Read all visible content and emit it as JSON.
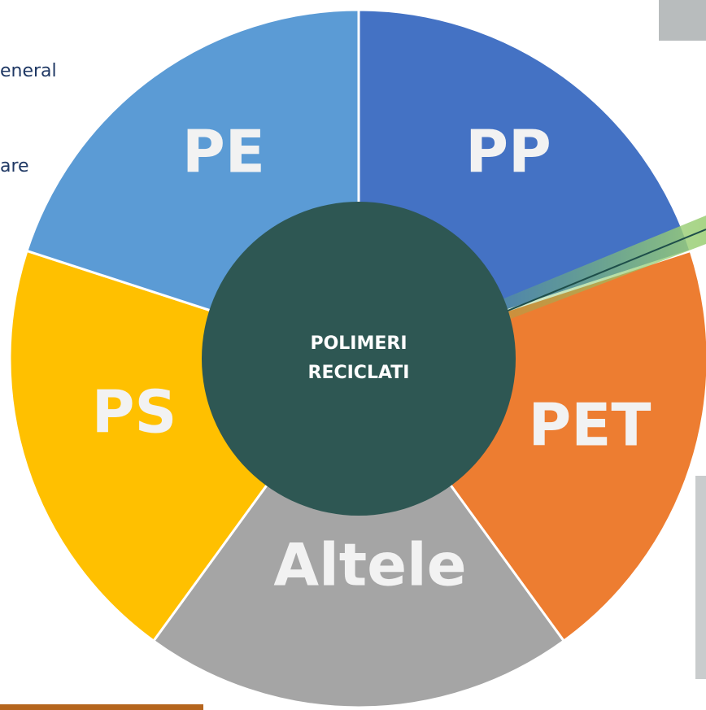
{
  "side_text": [
    "eneral",
    "are"
  ],
  "center": {
    "lines": [
      "POLIMERI",
      "RECICLATI"
    ]
  },
  "segments": [
    {
      "label": "PP"
    },
    {
      "label": "PET"
    },
    {
      "label": "Altele"
    },
    {
      "label": "PS"
    },
    {
      "label": "PE"
    }
  ]
}
